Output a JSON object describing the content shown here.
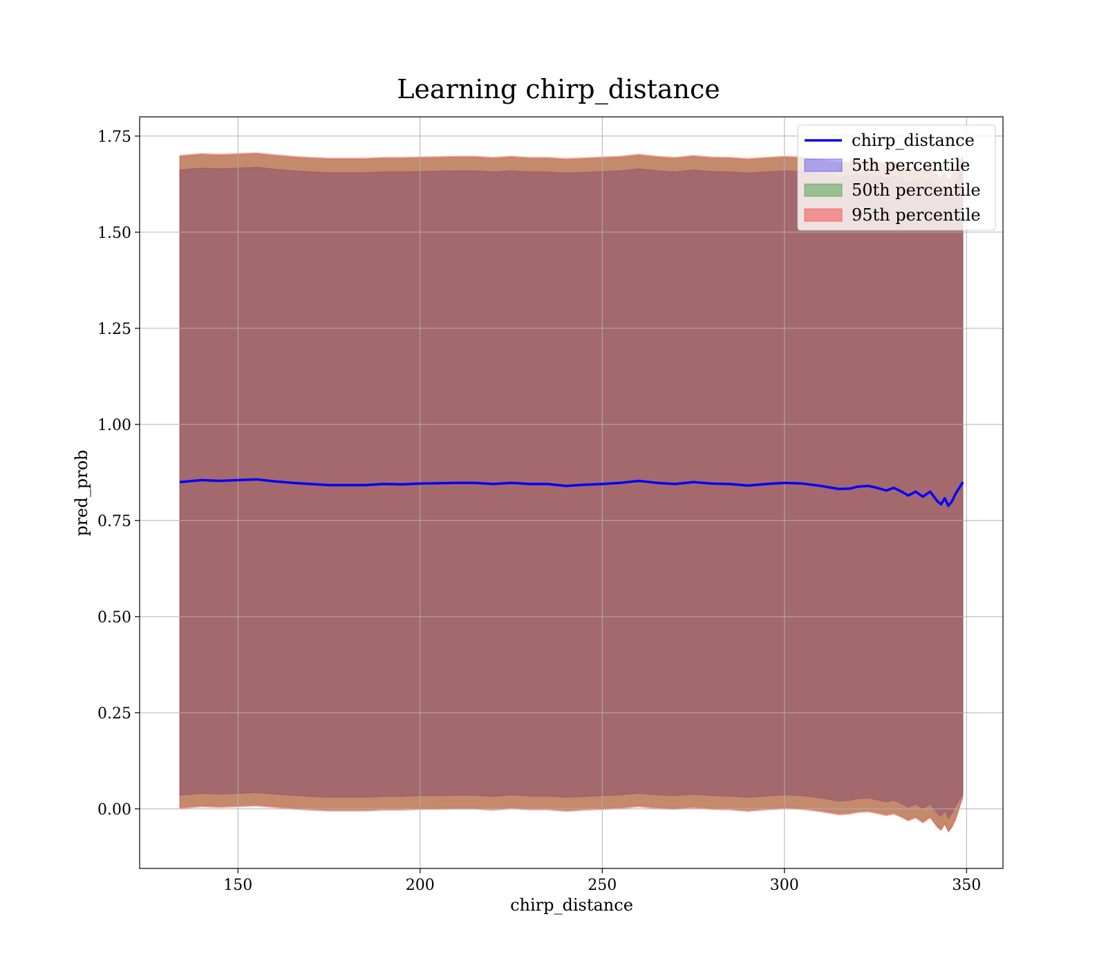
{
  "chart_data": {
    "type": "area",
    "title": "Learning chirp_distance",
    "xlabel": "chirp_distance",
    "ylabel": "pred_prob",
    "xlim": [
      123,
      360
    ],
    "ylim": [
      -0.155,
      1.8
    ],
    "xticks": [
      150,
      200,
      250,
      300,
      350
    ],
    "yticks": [
      0.0,
      0.25,
      0.5,
      0.75,
      1.0,
      1.25,
      1.5,
      1.75
    ],
    "xtick_labels": [
      "150",
      "200",
      "250",
      "300",
      "350"
    ],
    "ytick_labels": [
      "0.00",
      "0.25",
      "0.50",
      "0.75",
      "1.00",
      "1.25",
      "1.50",
      "1.75"
    ],
    "grid": true,
    "legend_position": "top-right",
    "x": [
      134,
      140,
      145,
      150,
      155,
      160,
      165,
      170,
      175,
      180,
      185,
      190,
      195,
      200,
      205,
      210,
      215,
      220,
      225,
      230,
      235,
      240,
      245,
      250,
      255,
      260,
      265,
      270,
      275,
      280,
      285,
      290,
      295,
      300,
      305,
      310,
      315,
      318,
      320,
      323,
      325,
      328,
      330,
      332,
      334,
      336,
      338,
      340,
      342,
      343,
      344,
      345,
      346,
      347,
      349
    ],
    "line": {
      "name": "chirp_distance",
      "color": "#0000ff",
      "values": [
        0.85,
        0.855,
        0.853,
        0.855,
        0.857,
        0.852,
        0.848,
        0.845,
        0.842,
        0.842,
        0.842,
        0.845,
        0.844,
        0.846,
        0.847,
        0.848,
        0.848,
        0.845,
        0.848,
        0.845,
        0.845,
        0.84,
        0.843,
        0.845,
        0.848,
        0.853,
        0.848,
        0.845,
        0.85,
        0.846,
        0.845,
        0.841,
        0.845,
        0.848,
        0.846,
        0.84,
        0.832,
        0.833,
        0.838,
        0.84,
        0.836,
        0.828,
        0.835,
        0.826,
        0.815,
        0.825,
        0.812,
        0.825,
        0.8,
        0.792,
        0.808,
        0.788,
        0.8,
        0.82,
        0.85
      ]
    },
    "bands": [
      {
        "name": "5th percentile",
        "color": "#0000ff",
        "opacity": 0.3,
        "lower": [
          0.035,
          0.04,
          0.038,
          0.04,
          0.042,
          0.038,
          0.035,
          0.032,
          0.03,
          0.03,
          0.03,
          0.032,
          0.032,
          0.034,
          0.034,
          0.035,
          0.035,
          0.032,
          0.036,
          0.033,
          0.033,
          0.03,
          0.032,
          0.034,
          0.036,
          0.04,
          0.036,
          0.034,
          0.038,
          0.034,
          0.033,
          0.03,
          0.033,
          0.036,
          0.034,
          0.028,
          0.02,
          0.022,
          0.026,
          0.028,
          0.024,
          0.018,
          0.022,
          0.014,
          0.004,
          0.012,
          0.0,
          0.012,
          -0.012,
          -0.02,
          -0.005,
          -0.025,
          -0.012,
          0.008,
          0.038
        ],
        "upper": [
          1.662,
          1.667,
          1.665,
          1.667,
          1.669,
          1.664,
          1.66,
          1.657,
          1.655,
          1.655,
          1.655,
          1.657,
          1.657,
          1.658,
          1.659,
          1.66,
          1.66,
          1.657,
          1.66,
          1.657,
          1.657,
          1.654,
          1.656,
          1.658,
          1.66,
          1.665,
          1.66,
          1.657,
          1.662,
          1.658,
          1.657,
          1.654,
          1.657,
          1.66,
          1.658,
          1.652,
          1.645,
          1.646,
          1.65,
          1.652,
          1.648,
          1.64,
          1.647,
          1.638,
          1.628,
          1.637,
          1.624,
          1.637,
          1.612,
          1.604,
          1.62,
          1.6,
          1.612,
          1.632,
          1.662
        ]
      },
      {
        "name": "50th percentile",
        "color": "#008000",
        "opacity": 0.35,
        "lower": [
          0.003,
          0.008,
          0.006,
          0.008,
          0.01,
          0.006,
          0.002,
          -0.001,
          -0.003,
          -0.003,
          -0.003,
          -0.001,
          -0.001,
          0.001,
          0.001,
          0.002,
          0.002,
          -0.001,
          0.003,
          0.0,
          0.0,
          -0.004,
          -0.001,
          0.001,
          0.003,
          0.008,
          0.003,
          0.001,
          0.005,
          0.001,
          0.0,
          -0.004,
          0.0,
          0.003,
          0.001,
          -0.005,
          -0.013,
          -0.011,
          -0.007,
          -0.005,
          -0.009,
          -0.015,
          -0.011,
          -0.019,
          -0.029,
          -0.021,
          -0.034,
          -0.021,
          -0.046,
          -0.054,
          -0.038,
          -0.058,
          -0.046,
          -0.026,
          0.032
        ],
        "upper": [
          1.697,
          1.702,
          1.7,
          1.702,
          1.704,
          1.699,
          1.695,
          1.692,
          1.69,
          1.69,
          1.69,
          1.692,
          1.692,
          1.693,
          1.694,
          1.695,
          1.695,
          1.692,
          1.695,
          1.692,
          1.692,
          1.689,
          1.691,
          1.693,
          1.695,
          1.7,
          1.695,
          1.692,
          1.697,
          1.693,
          1.692,
          1.689,
          1.692,
          1.695,
          1.693,
          1.687,
          1.68,
          1.681,
          1.685,
          1.687,
          1.683,
          1.675,
          1.682,
          1.673,
          1.663,
          1.672,
          1.659,
          1.672,
          1.647,
          1.639,
          1.655,
          1.635,
          1.647,
          1.667,
          1.697
        ]
      },
      {
        "name": "95th percentile",
        "color": "#ff0000",
        "opacity": 0.35,
        "lower": [
          0.0,
          0.005,
          0.003,
          0.005,
          0.007,
          0.003,
          -0.001,
          -0.004,
          -0.006,
          -0.006,
          -0.006,
          -0.004,
          -0.004,
          -0.002,
          -0.002,
          -0.001,
          -0.001,
          -0.004,
          0.0,
          -0.003,
          -0.003,
          -0.007,
          -0.004,
          -0.002,
          0.0,
          0.005,
          0.0,
          -0.002,
          0.002,
          -0.002,
          -0.003,
          -0.007,
          -0.003,
          0.0,
          -0.002,
          -0.008,
          -0.016,
          -0.014,
          -0.01,
          -0.008,
          -0.012,
          -0.018,
          -0.014,
          -0.022,
          -0.032,
          -0.024,
          -0.037,
          -0.024,
          -0.049,
          -0.057,
          -0.041,
          -0.061,
          -0.049,
          -0.029,
          0.029
        ],
        "upper": [
          1.7,
          1.705,
          1.703,
          1.705,
          1.707,
          1.702,
          1.698,
          1.695,
          1.693,
          1.693,
          1.693,
          1.695,
          1.695,
          1.696,
          1.697,
          1.698,
          1.698,
          1.695,
          1.698,
          1.695,
          1.695,
          1.692,
          1.694,
          1.696,
          1.698,
          1.703,
          1.698,
          1.695,
          1.7,
          1.696,
          1.695,
          1.692,
          1.695,
          1.698,
          1.696,
          1.69,
          1.683,
          1.684,
          1.688,
          1.69,
          1.686,
          1.678,
          1.685,
          1.676,
          1.666,
          1.675,
          1.662,
          1.675,
          1.65,
          1.642,
          1.658,
          1.638,
          1.65,
          1.67,
          1.7
        ]
      }
    ],
    "legend": [
      "chirp_distance",
      "5th percentile",
      "50th percentile",
      "95th percentile"
    ]
  }
}
